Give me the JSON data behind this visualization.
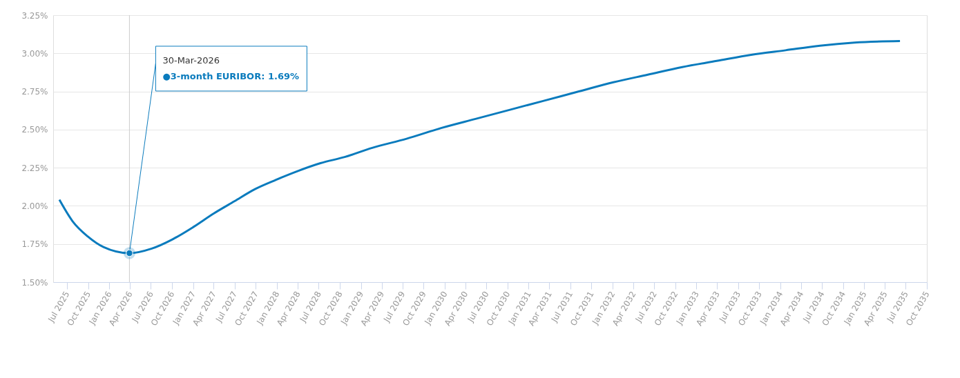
{
  "chart_data": {
    "type": "line",
    "x": [
      "2025-05-29",
      "2025-07-25",
      "2025-09-29",
      "2025-12-07",
      "2026-03-30",
      "2026-07-05",
      "2026-10-03",
      "2027-01-01",
      "2027-04-01",
      "2027-06-30",
      "2027-09-28",
      "2027-12-27",
      "2028-04-04",
      "2028-07-09",
      "2028-10-22",
      "2029-02-19",
      "2029-07-19",
      "2029-12-16",
      "2030-05-15",
      "2030-10-12",
      "2031-03-11",
      "2031-08-08",
      "2032-01-05",
      "2032-06-03",
      "2032-10-31",
      "2033-03-30",
      "2033-08-27",
      "2034-01-24",
      "2034-06-23",
      "2034-11-20",
      "2035-06-06"
    ],
    "series": [
      {
        "color": "#0a7bbd",
        "values": [
          2.04,
          1.9,
          1.8,
          1.73,
          1.69,
          1.72,
          1.78,
          1.86,
          1.95,
          2.03,
          2.11,
          2.17,
          2.23,
          2.28,
          2.32,
          2.38,
          2.44,
          2.51,
          2.57,
          2.63,
          2.69,
          2.75,
          2.81,
          2.86,
          2.91,
          2.95,
          2.99,
          3.02,
          3.05,
          3.07,
          3.08
        ]
      }
    ],
    "annotations": [
      {
        "text": "30-Mar-2026",
        "x": "2026-03-30",
        "y": 1.69
      },
      "●3-month EURIBOR: 1.69%"
    ],
    "ref_lines": [
      {
        "axis": "x",
        "value": "2026-03-30",
        "color": "#cccccc"
      }
    ],
    "xlim": [
      "2025-05-02",
      "2035-10-01"
    ],
    "xticks": [
      {
        "value": "2025-07-01",
        "label": "Jul 2025"
      },
      {
        "value": "2025-10-01",
        "label": "Oct 2025"
      },
      {
        "value": "2026-01-01",
        "label": "Jan 2026"
      },
      {
        "value": "2026-04-01",
        "label": "Apr 2026"
      },
      {
        "value": "2026-07-01",
        "label": "Jul 2026"
      },
      {
        "value": "2026-10-01",
        "label": "Oct 2026"
      },
      {
        "value": "2027-01-01",
        "label": "Jan 2027"
      },
      {
        "value": "2027-04-01",
        "label": "Apr 2027"
      },
      {
        "value": "2027-07-01",
        "label": "Jul 2027"
      },
      {
        "value": "2027-10-01",
        "label": "Oct 2027"
      },
      {
        "value": "2028-01-01",
        "label": "Jan 2028"
      },
      {
        "value": "2028-04-01",
        "label": "Apr 2028"
      },
      {
        "value": "2028-07-01",
        "label": "Jul 2028"
      },
      {
        "value": "2028-10-01",
        "label": "Oct 2028"
      },
      {
        "value": "2029-01-01",
        "label": "Jan 2029"
      },
      {
        "value": "2029-04-01",
        "label": "Apr 2029"
      },
      {
        "value": "2029-07-01",
        "label": "Jul 2029"
      },
      {
        "value": "2029-10-01",
        "label": "Oct 2029"
      },
      {
        "value": "2030-01-01",
        "label": "Jan 2030"
      },
      {
        "value": "2030-04-01",
        "label": "Apr 2030"
      },
      {
        "value": "2030-07-01",
        "label": "Jul 2030"
      },
      {
        "value": "2030-10-01",
        "label": "Oct 2030"
      },
      {
        "value": "2031-01-01",
        "label": "Jan 2031"
      },
      {
        "value": "2031-04-01",
        "label": "Apr 2031"
      },
      {
        "value": "2031-07-01",
        "label": "Jul 2031"
      },
      {
        "value": "2031-10-01",
        "label": "Oct 2031"
      },
      {
        "value": "2032-01-01",
        "label": "Jan 2032"
      },
      {
        "value": "2032-04-01",
        "label": "Apr 2032"
      },
      {
        "value": "2032-07-01",
        "label": "Jul 2032"
      },
      {
        "value": "2032-10-01",
        "label": "Oct 2032"
      },
      {
        "value": "2033-01-01",
        "label": "Jan 2033"
      },
      {
        "value": "2033-04-01",
        "label": "Apr 2033"
      },
      {
        "value": "2033-07-01",
        "label": "Jul 2033"
      },
      {
        "value": "2033-10-01",
        "label": "Oct 2033"
      },
      {
        "value": "2034-01-01",
        "label": "Jan 2034"
      },
      {
        "value": "2034-04-01",
        "label": "Apr 2034"
      },
      {
        "value": "2034-07-01",
        "label": "Jul 2034"
      },
      {
        "value": "2034-10-01",
        "label": "Oct 2034"
      },
      {
        "value": "2035-01-01",
        "label": "Jan 2035"
      },
      {
        "value": "2035-04-01",
        "label": "Apr 2035"
      },
      {
        "value": "2035-07-01",
        "label": "Jul 2035"
      },
      {
        "value": "2035-10-01",
        "label": "Oct 2035"
      }
    ],
    "ylim": [
      1.5,
      3.25
    ],
    "yticks": [
      {
        "value": 1.5,
        "label": "1.50%"
      },
      {
        "value": 1.75,
        "label": "1.75%"
      },
      {
        "value": 2.0,
        "label": "2.00%"
      },
      {
        "value": 2.25,
        "label": "2.25%"
      },
      {
        "value": 2.5,
        "label": "2.50%"
      },
      {
        "value": 2.75,
        "label": "2.75%"
      },
      {
        "value": 3.0,
        "label": "3.00%"
      },
      {
        "value": 3.25,
        "label": "3.25%"
      }
    ],
    "grid": "y"
  }
}
